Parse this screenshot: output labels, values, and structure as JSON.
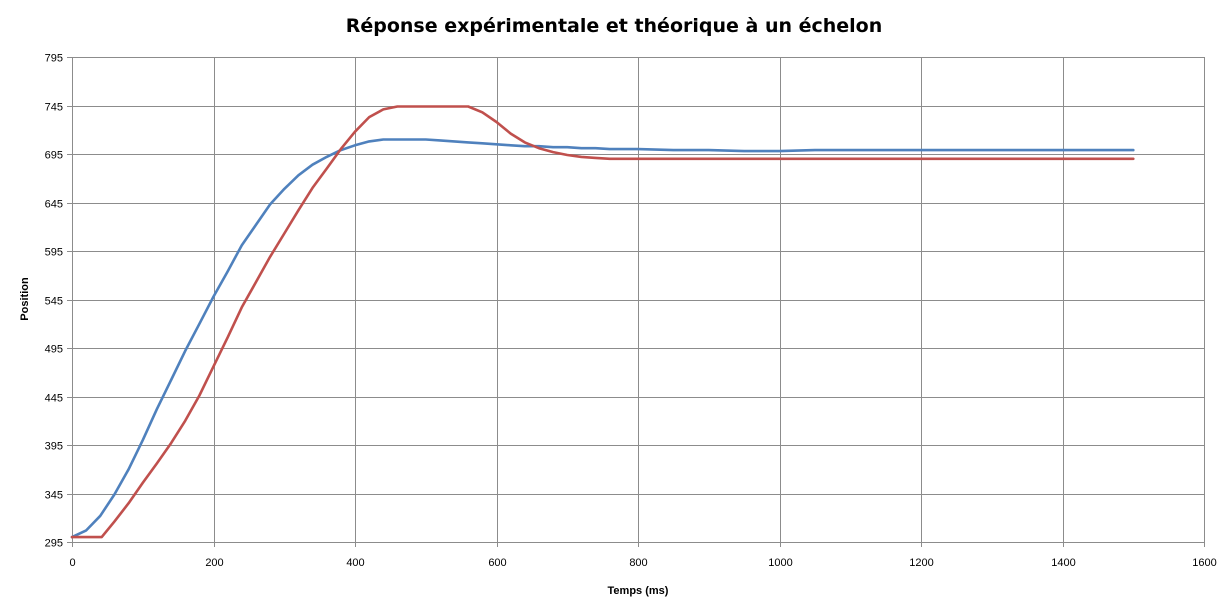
{
  "chart_data": {
    "type": "line",
    "title": "Réponse expérimentale et théorique à un échelon",
    "xlabel": "Temps (ms)",
    "ylabel": "Position",
    "xlim": [
      0,
      1600
    ],
    "ylim": [
      295,
      795
    ],
    "x_ticks": [
      0,
      200,
      400,
      600,
      800,
      1000,
      1200,
      1400,
      1600
    ],
    "y_ticks": [
      295,
      345,
      395,
      445,
      495,
      545,
      595,
      645,
      695,
      745,
      795
    ],
    "grid": true,
    "legend": "none",
    "series": [
      {
        "color": "#4f81bd",
        "x": [
          0,
          20,
          40,
          60,
          80,
          100,
          120,
          140,
          160,
          180,
          200,
          220,
          240,
          260,
          280,
          300,
          320,
          340,
          360,
          380,
          400,
          420,
          440,
          460,
          480,
          500,
          520,
          540,
          560,
          580,
          600,
          620,
          640,
          660,
          680,
          700,
          720,
          740,
          760,
          780,
          800,
          850,
          900,
          950,
          1000,
          1050,
          1100,
          1200,
          1300,
          1400,
          1500
        ],
        "y": [
          300,
          307,
          322,
          344,
          370,
          400,
          432,
          462,
          492,
          520,
          548,
          574,
          601,
          622,
          643,
          659,
          673,
          684,
          692,
          699,
          704,
          708,
          710,
          710,
          710,
          710,
          709,
          708,
          707,
          706,
          705,
          704,
          703,
          703,
          702,
          702,
          701,
          701,
          700,
          700,
          700,
          699,
          699,
          698,
          698,
          699,
          699,
          699,
          699,
          699,
          699
        ]
      },
      {
        "color": "#c0504d",
        "x": [
          0,
          20,
          42,
          60,
          80,
          100,
          120,
          140,
          160,
          180,
          200,
          220,
          240,
          260,
          280,
          300,
          320,
          340,
          360,
          380,
          400,
          420,
          440,
          460,
          480,
          500,
          520,
          540,
          560,
          580,
          600,
          620,
          640,
          660,
          680,
          700,
          720,
          740,
          760,
          800,
          900,
          1000,
          1100,
          1200,
          1300,
          1400,
          1500
        ],
        "y": [
          300,
          300,
          300,
          316,
          335,
          356,
          376,
          397,
          420,
          446,
          476,
          506,
          537,
          563,
          589,
          613,
          637,
          660,
          680,
          700,
          718,
          733,
          741,
          744,
          744,
          744,
          744,
          744,
          744,
          738,
          728,
          716,
          707,
          701,
          697,
          694,
          692,
          691,
          690,
          690,
          690,
          690,
          690,
          690,
          690,
          690,
          690
        ]
      }
    ]
  }
}
